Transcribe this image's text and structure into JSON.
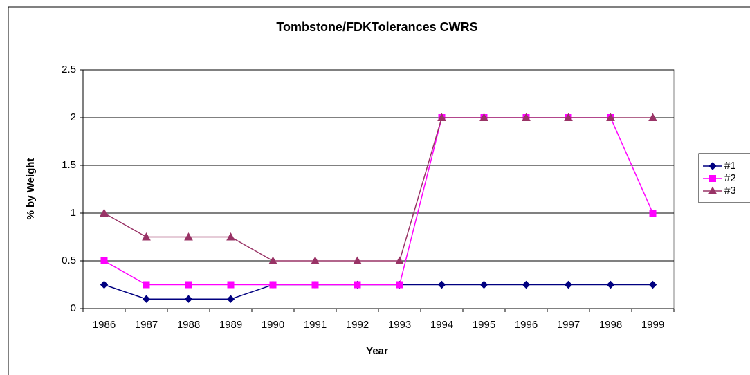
{
  "chart_data": {
    "type": "line",
    "title": "Tombstone/FDKTolerances CWRS",
    "x_label": "Year",
    "y_label": "% by Weight",
    "categories": [
      "1986",
      "1987",
      "1988",
      "1989",
      "1990",
      "1991",
      "1992",
      "1993",
      "1994",
      "1995",
      "1996",
      "1997",
      "1998",
      "1999"
    ],
    "series": [
      {
        "name": "#1",
        "color": "#000080",
        "marker": "diamond",
        "values": [
          0.25,
          0.1,
          0.1,
          0.1,
          0.25,
          0.25,
          0.25,
          0.25,
          0.25,
          0.25,
          0.25,
          0.25,
          0.25,
          0.25
        ]
      },
      {
        "name": "#2",
        "color": "#ff00ff",
        "marker": "square",
        "values": [
          0.5,
          0.25,
          0.25,
          0.25,
          0.25,
          0.25,
          0.25,
          0.25,
          2,
          2,
          2,
          2,
          2,
          1
        ]
      },
      {
        "name": "#3",
        "color": "#993366",
        "marker": "triangle",
        "values": [
          1,
          0.75,
          0.75,
          0.75,
          0.5,
          0.5,
          0.5,
          0.5,
          2,
          2,
          2,
          2,
          2,
          2
        ]
      }
    ],
    "ylim": [
      0,
      2.5
    ],
    "yticks": [
      0,
      0.5,
      1,
      1.5,
      2,
      2.5
    ],
    "grid": true,
    "legend": "right"
  }
}
